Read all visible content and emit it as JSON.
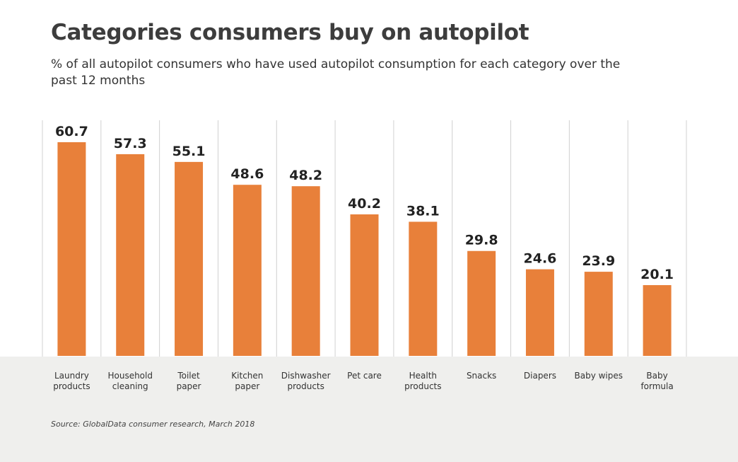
{
  "header": {
    "title": "Categories consumers buy on autopilot",
    "subtitle": "% of all autopilot consumers who have used autopilot consumption for each category over the past 12 months"
  },
  "footer": {
    "source": "Source: GlobalData consumer research, March 2018"
  },
  "colors": {
    "bar": "#E8803A",
    "gridline": "#d0d0d0",
    "footer_band": "#efefed"
  },
  "chart_data": {
    "type": "bar",
    "categories": [
      [
        "Laundry",
        "products"
      ],
      [
        "Household",
        "cleaning"
      ],
      [
        "Toilet",
        "paper"
      ],
      [
        "Kitchen",
        "paper"
      ],
      [
        "Dishwasher",
        "products"
      ],
      [
        "Pet care"
      ],
      [
        "Health",
        "products"
      ],
      [
        "Snacks"
      ],
      [
        "Diapers"
      ],
      [
        "Baby wipes"
      ],
      [
        "Baby",
        "formula"
      ]
    ],
    "values": [
      60.7,
      57.3,
      55.1,
      48.6,
      48.2,
      40.2,
      38.1,
      29.8,
      24.6,
      23.9,
      20.1
    ],
    "value_labels": [
      "60.7",
      "57.3",
      "55.1",
      "48.6",
      "48.2",
      "40.2",
      "38.1",
      "29.8",
      "24.6",
      "23.9",
      "20.1"
    ],
    "ylim": [
      0,
      60.7
    ],
    "grid": "vertical separators",
    "legend": "none"
  }
}
